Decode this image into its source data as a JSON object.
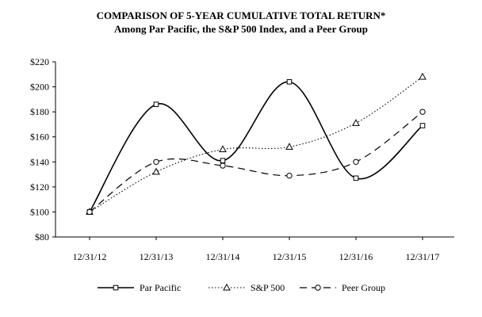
{
  "chart_data": {
    "type": "line",
    "title": "COMPARISON OF 5-YEAR CUMULATIVE TOTAL RETURN*",
    "subtitle": "Among Par Pacific, the S&P 500 Index, and a Peer Group",
    "categories": [
      "12/31/12",
      "12/31/13",
      "12/31/14",
      "12/31/15",
      "12/31/16",
      "12/31/17"
    ],
    "ylim": [
      80,
      220
    ],
    "yticks": [
      80,
      100,
      120,
      140,
      160,
      180,
      200,
      220
    ],
    "ytick_labels": [
      "$80",
      "$100",
      "$120",
      "$140",
      "$160",
      "$180",
      "$200",
      "$220"
    ],
    "grid": false,
    "legend_position": "bottom",
    "series": [
      {
        "name": "Par Pacific",
        "values": [
          100,
          186,
          141,
          204,
          127,
          169
        ],
        "marker": "square",
        "line": "solid"
      },
      {
        "name": "S&P 500",
        "values": [
          100,
          132,
          150,
          152,
          171,
          208
        ],
        "marker": "triangle",
        "line": "dotted"
      },
      {
        "name": "Peer Group",
        "values": [
          100,
          140,
          137,
          129,
          140,
          180
        ],
        "marker": "circle",
        "line": "dashed"
      }
    ]
  }
}
